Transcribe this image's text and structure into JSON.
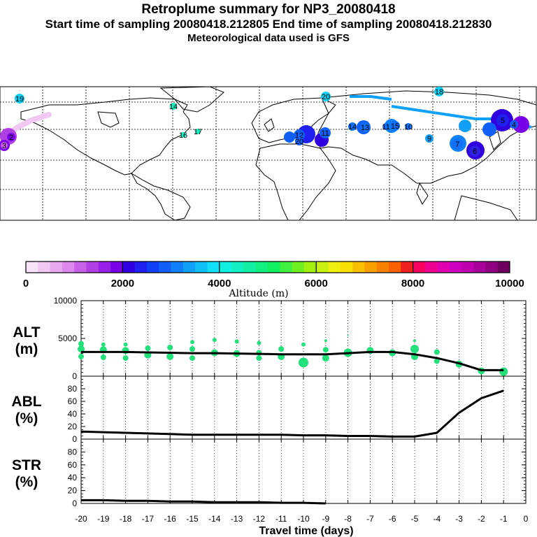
{
  "header": {
    "title": "Retroplume summary for NP3_20080418",
    "sampling": "Start time of sampling 20080418.212805     End time of sampling 20080418.212830",
    "met": "Meteorological data used is GFS"
  },
  "colorbar": {
    "label": "Altitude (m)",
    "tick_labels": [
      "0",
      "2000",
      "4000",
      "6000",
      "8000",
      "10000"
    ],
    "colors": [
      "#f8e4f8",
      "#f0c8f0",
      "#e8a8ee",
      "#dc88ec",
      "#c860e8",
      "#b040e4",
      "#9820e8",
      "#7a00e8",
      "#3000e0",
      "#2020f0",
      "#1040f8",
      "#1060f8",
      "#1080f8",
      "#10a0f8",
      "#10c0f8",
      "#10e0f8",
      "#10f0e0",
      "#10f0c0",
      "#10f0a0",
      "#10f080",
      "#10f060",
      "#40f040",
      "#70f020",
      "#a0f010",
      "#c8f010",
      "#f0f010",
      "#f8e000",
      "#f8c000",
      "#f8a000",
      "#f88000",
      "#f86000",
      "#f02020",
      "#f80060",
      "#f00090",
      "#e000b0",
      "#d000c0",
      "#c000b0",
      "#a80098",
      "#900080",
      "#700060"
    ]
  },
  "map": {
    "labels": [
      {
        "t": "19",
        "c": "#10d0f8"
      },
      {
        "t": "20",
        "c": "#10d0f8"
      },
      {
        "t": "18",
        "c": "#10d0f8"
      },
      {
        "t": "14",
        "c": "#10f0c0"
      },
      {
        "t": "16",
        "c": "#10f0c0"
      },
      {
        "t": "17",
        "c": "#10f0c0"
      },
      {
        "t": "12",
        "c": "#1060f8"
      },
      {
        "t": "11",
        "c": "#1060f8"
      },
      {
        "t": "20",
        "c": "#1060f8"
      },
      {
        "t": "14",
        "c": "#1070f8"
      },
      {
        "t": "13",
        "c": "#1070f8"
      },
      {
        "t": "11",
        "c": "#1070f8"
      },
      {
        "t": "15",
        "c": "#1070f8"
      },
      {
        "t": "10",
        "c": "#1070f8"
      },
      {
        "t": "9",
        "c": "#10a0f8"
      },
      {
        "t": "7",
        "c": "#1070f8"
      },
      {
        "t": "6",
        "c": "#3020e0"
      },
      {
        "t": "5",
        "c": "#2020f0"
      },
      {
        "t": "4",
        "c": "#1060f8"
      },
      {
        "t": "2",
        "c": "#7a00e8"
      },
      {
        "t": "3",
        "c": "#c860e8"
      }
    ]
  },
  "chart_data": [
    {
      "panel": "ALT",
      "type": "line",
      "ylabel_line1": "ALT",
      "ylabel_line2": "(m)",
      "ylim": [
        0,
        10000
      ],
      "yticks": [
        "0",
        "5000",
        "10000"
      ],
      "x": [
        -20,
        -19,
        -18,
        -17,
        -16,
        -15,
        -14,
        -13,
        -12,
        -11,
        -10,
        -9,
        -8,
        -7,
        -6,
        -5,
        -4,
        -3,
        -2,
        -1
      ],
      "mean": [
        3200,
        3200,
        3200,
        3150,
        3100,
        3050,
        3050,
        3000,
        2950,
        2900,
        2900,
        2900,
        3050,
        3200,
        3200,
        2900,
        2400,
        1700,
        800,
        800
      ],
      "points": [
        [
          -20,
          4300,
          4
        ],
        [
          -20,
          3600,
          5
        ],
        [
          -20,
          2600,
          4
        ],
        [
          -19,
          4200,
          3
        ],
        [
          -19,
          3500,
          5
        ],
        [
          -19,
          2500,
          4
        ],
        [
          -18,
          4200,
          3
        ],
        [
          -18,
          3400,
          5
        ],
        [
          -18,
          2400,
          4
        ],
        [
          -17,
          3700,
          4
        ],
        [
          -17,
          2800,
          5
        ],
        [
          -16,
          3800,
          4
        ],
        [
          -16,
          2600,
          5
        ],
        [
          -15,
          4500,
          3
        ],
        [
          -15,
          3600,
          4
        ],
        [
          -15,
          2400,
          4
        ],
        [
          -14,
          4800,
          3
        ],
        [
          -14,
          3100,
          5
        ],
        [
          -13,
          4600,
          3
        ],
        [
          -13,
          3000,
          5
        ],
        [
          -12,
          4400,
          3
        ],
        [
          -12,
          3100,
          4
        ],
        [
          -12,
          2400,
          4
        ],
        [
          -11,
          3600,
          4
        ],
        [
          -11,
          2600,
          5
        ],
        [
          -10,
          4200,
          3
        ],
        [
          -10,
          1800,
          7
        ],
        [
          -9,
          4700,
          2
        ],
        [
          -9,
          3500,
          4
        ],
        [
          -9,
          2400,
          5
        ],
        [
          -8,
          3100,
          6
        ],
        [
          -8,
          5400,
          1
        ],
        [
          -7,
          3400,
          5
        ],
        [
          -6,
          3100,
          5
        ],
        [
          -5,
          4700,
          2
        ],
        [
          -5,
          3600,
          6
        ],
        [
          -5,
          2600,
          5
        ],
        [
          -4,
          3200,
          4
        ],
        [
          -4,
          2000,
          4
        ],
        [
          -3,
          1600,
          5
        ],
        [
          -2,
          700,
          5
        ],
        [
          -1,
          600,
          6
        ]
      ]
    },
    {
      "panel": "ABL",
      "type": "line",
      "ylabel_line1": "ABL",
      "ylabel_line2": "(%)",
      "ylim": [
        0,
        100
      ],
      "yticks": [
        "0",
        "20",
        "40",
        "60",
        "80"
      ],
      "x": [
        -20,
        -19,
        -18,
        -17,
        -16,
        -15,
        -14,
        -13,
        -12,
        -11,
        -10,
        -9,
        -8,
        -7,
        -6,
        -5,
        -4,
        -3,
        -2,
        -1
      ],
      "values": [
        12,
        11,
        10,
        9,
        8,
        7,
        7,
        7,
        7,
        7,
        6,
        6,
        5,
        5,
        4,
        4,
        10,
        42,
        65,
        77
      ]
    },
    {
      "panel": "STR",
      "type": "line",
      "ylabel_line1": "STR",
      "ylabel_line2": "(%)",
      "ylim": [
        0,
        100
      ],
      "yticks": [
        "0",
        "20",
        "40",
        "60",
        "80"
      ],
      "xlabel": "Travel time (days)",
      "xtick_labels": [
        "-20",
        "-19",
        "-18",
        "-17",
        "-16",
        "-15",
        "-14",
        "-13",
        "-12",
        "-11",
        "-10",
        "-9",
        "-8",
        "-7",
        "-6",
        "-5",
        "-4",
        "-3",
        "-2",
        "-1",
        "0"
      ],
      "x": [
        -20,
        -19,
        -18,
        -17,
        -16,
        -15,
        -14,
        -13,
        -12,
        -11,
        -10,
        -9
      ],
      "values": [
        5,
        5,
        4,
        4,
        3,
        3,
        2,
        2,
        2,
        1,
        1,
        0
      ]
    }
  ]
}
